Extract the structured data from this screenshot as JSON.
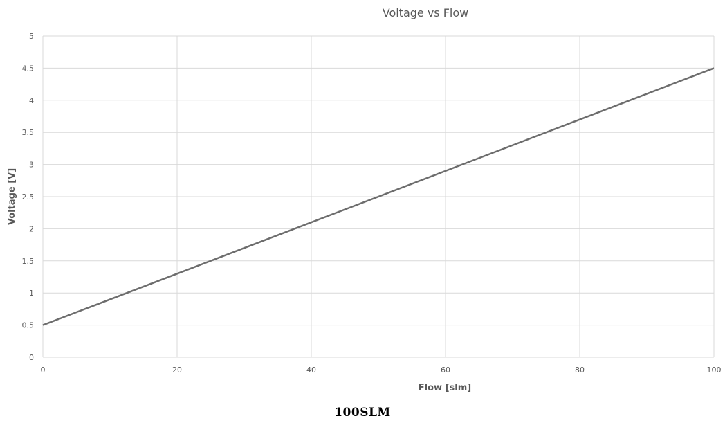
{
  "caption": "100SLM",
  "chart_data": {
    "type": "line",
    "title": "Voltage vs Flow",
    "xlabel": "Flow [slm]",
    "ylabel": "Voltage [V]",
    "xlim": [
      0,
      100
    ],
    "ylim": [
      0,
      5
    ],
    "x_ticks": [
      0,
      20,
      40,
      60,
      80,
      100
    ],
    "y_ticks": [
      0,
      0.5,
      1,
      1.5,
      2,
      2.5,
      3,
      3.5,
      4,
      4.5,
      5
    ],
    "grid": true,
    "legend": "none",
    "series": [
      {
        "color": "#6d6d6d",
        "x": [
          0,
          100
        ],
        "y": [
          0.5,
          4.5
        ]
      }
    ]
  }
}
